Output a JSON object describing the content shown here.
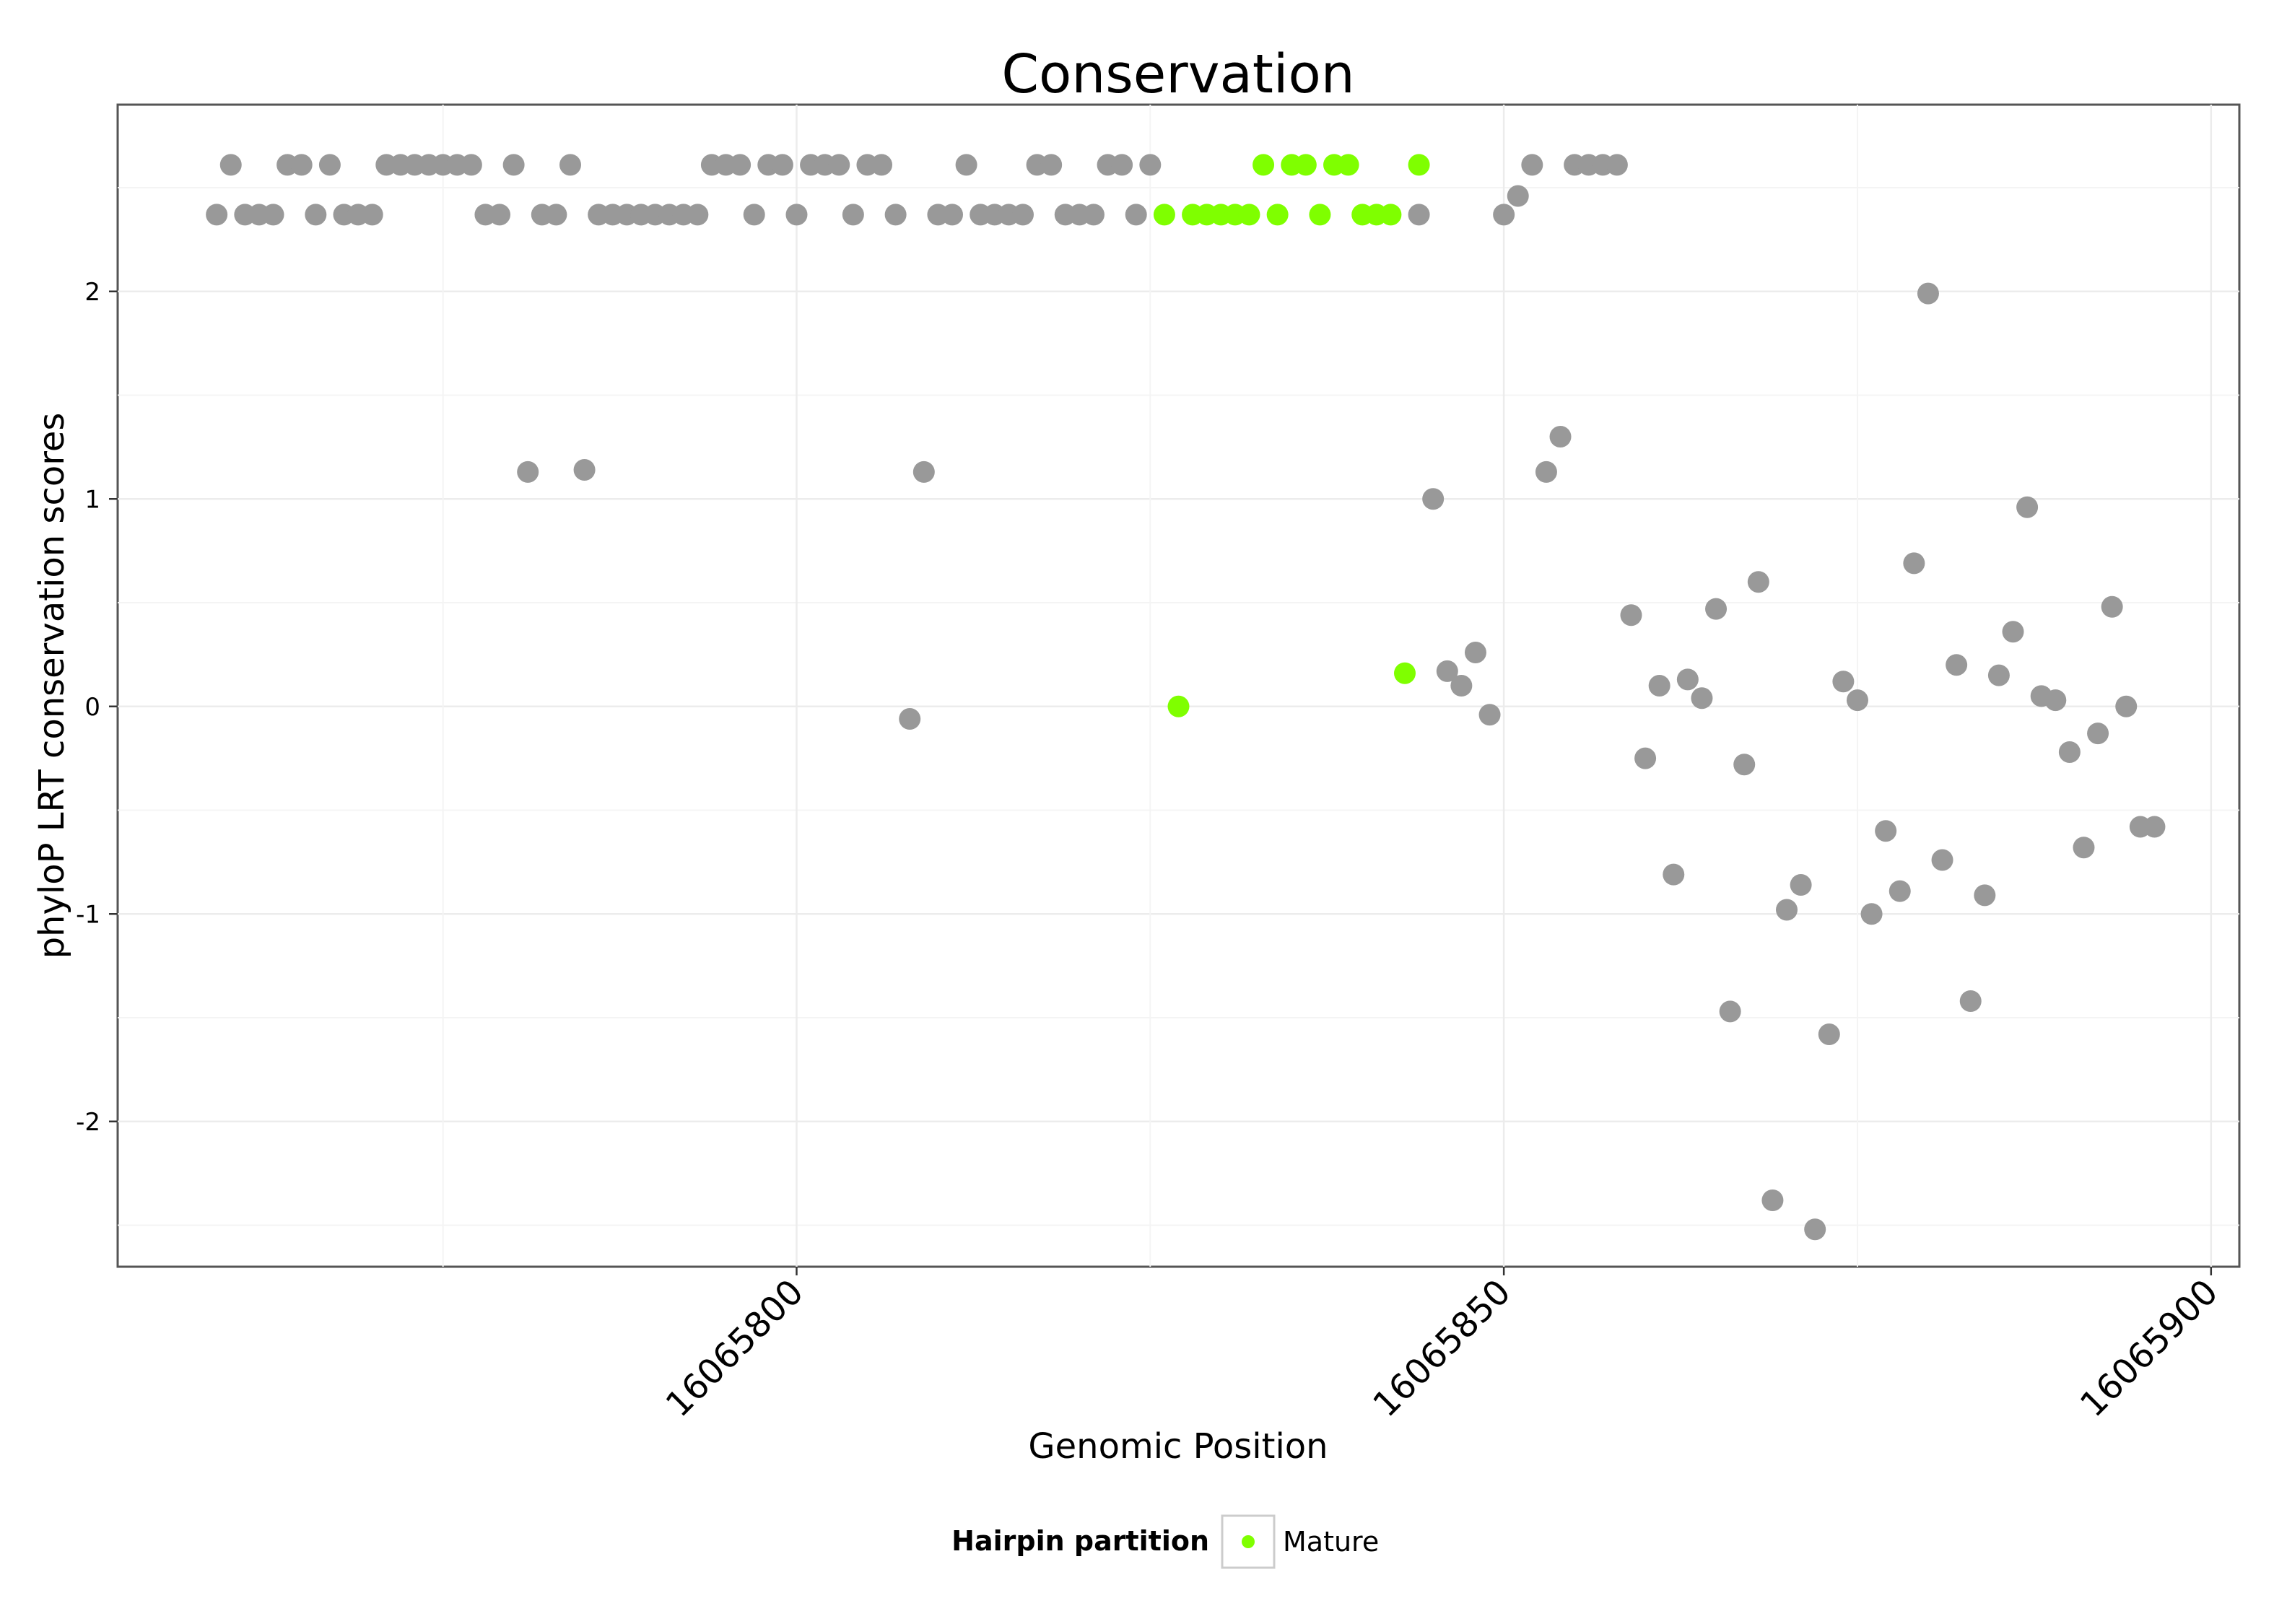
{
  "chart_data": {
    "type": "scatter",
    "title": "Conservation",
    "xlabel": "Genomic Position",
    "ylabel": "phyloP LRT conservation scores",
    "xlim": [
      16065752,
      16065902
    ],
    "ylim": [
      -2.7,
      2.9
    ],
    "x_ticks": [
      16065800,
      16065850,
      16065900
    ],
    "x_tick_labels": [
      "16065800",
      "16065850",
      "16065900"
    ],
    "y_ticks": [
      -2,
      -1,
      0,
      1,
      2
    ],
    "y_tick_labels": [
      "-2",
      "-1",
      "0",
      "1",
      "2"
    ],
    "grid": true,
    "legend": {
      "position": "bottom",
      "title": "Hairpin partition",
      "entries": [
        {
          "label": "Mature",
          "color": "#7FFF00"
        }
      ]
    },
    "colors": {
      "other": "#999999",
      "mature": "#7FFF00"
    },
    "series": [
      {
        "name": "",
        "color": "#999999",
        "points": [
          [
            16065759,
            2.37
          ],
          [
            16065760,
            2.61
          ],
          [
            16065761,
            2.37
          ],
          [
            16065762,
            2.37
          ],
          [
            16065763,
            2.37
          ],
          [
            16065764,
            2.61
          ],
          [
            16065765,
            2.61
          ],
          [
            16065766,
            2.37
          ],
          [
            16065767,
            2.61
          ],
          [
            16065768,
            2.37
          ],
          [
            16065769,
            2.37
          ],
          [
            16065770,
            2.37
          ],
          [
            16065771,
            2.61
          ],
          [
            16065772,
            2.61
          ],
          [
            16065773,
            2.61
          ],
          [
            16065774,
            2.61
          ],
          [
            16065775,
            2.61
          ],
          [
            16065776,
            2.61
          ],
          [
            16065777,
            2.61
          ],
          [
            16065778,
            2.37
          ],
          [
            16065779,
            2.37
          ],
          [
            16065780,
            2.61
          ],
          [
            16065781,
            1.13
          ],
          [
            16065782,
            2.37
          ],
          [
            16065783,
            2.37
          ],
          [
            16065784,
            2.61
          ],
          [
            16065785,
            1.14
          ],
          [
            16065786,
            2.37
          ],
          [
            16065787,
            2.37
          ],
          [
            16065788,
            2.37
          ],
          [
            16065789,
            2.37
          ],
          [
            16065790,
            2.37
          ],
          [
            16065791,
            2.37
          ],
          [
            16065792,
            2.37
          ],
          [
            16065793,
            2.37
          ],
          [
            16065794,
            2.61
          ],
          [
            16065795,
            2.61
          ],
          [
            16065796,
            2.61
          ],
          [
            16065797,
            2.37
          ],
          [
            16065798,
            2.61
          ],
          [
            16065799,
            2.61
          ],
          [
            16065800,
            2.37
          ],
          [
            16065801,
            2.61
          ],
          [
            16065802,
            2.61
          ],
          [
            16065803,
            2.61
          ],
          [
            16065804,
            2.37
          ],
          [
            16065805,
            2.61
          ],
          [
            16065806,
            2.61
          ],
          [
            16065807,
            2.37
          ],
          [
            16065808,
            -0.06
          ],
          [
            16065809,
            1.13
          ],
          [
            16065810,
            2.37
          ],
          [
            16065811,
            2.37
          ],
          [
            16065812,
            2.61
          ],
          [
            16065813,
            2.37
          ],
          [
            16065814,
            2.37
          ],
          [
            16065815,
            2.37
          ],
          [
            16065816,
            2.37
          ],
          [
            16065817,
            2.61
          ],
          [
            16065818,
            2.61
          ],
          [
            16065819,
            2.37
          ],
          [
            16065820,
            2.37
          ],
          [
            16065821,
            2.37
          ],
          [
            16065822,
            2.61
          ],
          [
            16065823,
            2.61
          ],
          [
            16065824,
            2.37
          ],
          [
            16065825,
            2.61
          ],
          [
            16065844,
            2.37
          ],
          [
            16065845,
            1.0
          ],
          [
            16065846,
            0.17
          ],
          [
            16065847,
            0.1
          ],
          [
            16065848,
            0.26
          ],
          [
            16065849,
            -0.04
          ],
          [
            16065850,
            2.37
          ],
          [
            16065851,
            2.46
          ],
          [
            16065852,
            2.61
          ],
          [
            16065853,
            1.13
          ],
          [
            16065854,
            1.3
          ],
          [
            16065855,
            2.61
          ],
          [
            16065856,
            2.61
          ],
          [
            16065857,
            2.61
          ],
          [
            16065858,
            2.61
          ],
          [
            16065859,
            0.44
          ],
          [
            16065860,
            -0.25
          ],
          [
            16065861,
            0.1
          ],
          [
            16065862,
            -0.81
          ],
          [
            16065863,
            0.13
          ],
          [
            16065864,
            0.04
          ],
          [
            16065865,
            0.47
          ],
          [
            16065866,
            -1.47
          ],
          [
            16065867,
            -0.28
          ],
          [
            16065868,
            0.6
          ],
          [
            16065869,
            -2.38
          ],
          [
            16065870,
            -0.98
          ],
          [
            16065871,
            -0.86
          ],
          [
            16065872,
            -2.52
          ],
          [
            16065873,
            -1.58
          ],
          [
            16065874,
            0.12
          ],
          [
            16065875,
            0.03
          ],
          [
            16065876,
            -1.0
          ],
          [
            16065877,
            -0.6
          ],
          [
            16065878,
            -0.89
          ],
          [
            16065879,
            0.69
          ],
          [
            16065880,
            1.99
          ],
          [
            16065881,
            -0.74
          ],
          [
            16065882,
            0.2
          ],
          [
            16065883,
            -1.42
          ],
          [
            16065884,
            -0.91
          ],
          [
            16065885,
            0.15
          ],
          [
            16065886,
            0.36
          ],
          [
            16065887,
            0.96
          ],
          [
            16065888,
            0.05
          ],
          [
            16065889,
            0.03
          ],
          [
            16065890,
            -0.22
          ],
          [
            16065891,
            -0.68
          ],
          [
            16065892,
            -0.13
          ],
          [
            16065893,
            0.48
          ],
          [
            16065894,
            0.0
          ],
          [
            16065895,
            -0.58
          ],
          [
            16065896,
            -0.58
          ]
        ]
      },
      {
        "name": "Mature",
        "color": "#7FFF00",
        "points": [
          [
            16065826,
            2.37
          ],
          [
            16065827,
            0.0
          ],
          [
            16065828,
            2.37
          ],
          [
            16065829,
            2.37
          ],
          [
            16065830,
            2.37
          ],
          [
            16065831,
            2.37
          ],
          [
            16065832,
            2.37
          ],
          [
            16065833,
            2.61
          ],
          [
            16065834,
            2.37
          ],
          [
            16065835,
            2.61
          ],
          [
            16065836,
            2.61
          ],
          [
            16065837,
            2.37
          ],
          [
            16065838,
            2.61
          ],
          [
            16065839,
            2.61
          ],
          [
            16065840,
            2.37
          ],
          [
            16065841,
            2.37
          ],
          [
            16065842,
            2.37
          ],
          [
            16065843,
            0.16
          ],
          [
            16065844,
            2.61
          ]
        ]
      }
    ]
  }
}
